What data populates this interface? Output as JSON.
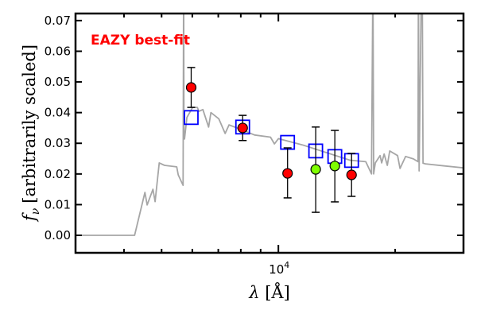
{
  "chart_data": {
    "type": "scatter",
    "title": "",
    "xlabel": "λ [Å]",
    "xlabel_symbol": "λ",
    "xlabel_unit": "[Å]",
    "ylabel": "f_ν [arbitrarily scaled]",
    "ylabel_symbol": "f",
    "ylabel_sub": "ν",
    "ylabel_text": "[arbitrarily scaled]",
    "xscale": "log",
    "xlim": [
      3000,
      30000
    ],
    "ylim": [
      -0.0057,
      0.0723
    ],
    "x_major_ticks": [
      {
        "value": 10000,
        "label_base": "10",
        "label_exp": "4"
      }
    ],
    "x_minor_ticks": [
      4000,
      5000,
      6000,
      7000,
      8000,
      9000,
      20000
    ],
    "y_ticks": [
      {
        "value": 0.0,
        "label": "0.00"
      },
      {
        "value": 0.01,
        "label": "0.01"
      },
      {
        "value": 0.02,
        "label": "0.02"
      },
      {
        "value": 0.03,
        "label": "0.03"
      },
      {
        "value": 0.04,
        "label": "0.04"
      },
      {
        "value": 0.05,
        "label": "0.05"
      },
      {
        "value": 0.06,
        "label": "0.06"
      },
      {
        "value": 0.07,
        "label": "0.07"
      }
    ],
    "annotation": {
      "text": "EAZY best-fit",
      "color": "#ff0000",
      "position": "top-left"
    },
    "series": [
      {
        "name": "template",
        "type": "line",
        "color": "#a6a6a6",
        "points": [
          [
            3000,
            0.0
          ],
          [
            4260,
            0.0
          ],
          [
            4530,
            0.014
          ],
          [
            4590,
            0.0099
          ],
          [
            4750,
            0.015
          ],
          [
            4810,
            0.011
          ],
          [
            4930,
            0.0236
          ],
          [
            5090,
            0.0228
          ],
          [
            5470,
            0.0223
          ],
          [
            5520,
            0.0197
          ],
          [
            5680,
            0.0163
          ],
          [
            5700,
            0.085
          ],
          [
            5710,
            0.0314
          ],
          [
            5730,
            0.0314
          ],
          [
            5810,
            0.0384
          ],
          [
            6010,
            0.0417
          ],
          [
            6180,
            0.0417
          ],
          [
            6240,
            0.0404
          ],
          [
            6390,
            0.041
          ],
          [
            6610,
            0.0353
          ],
          [
            6700,
            0.04
          ],
          [
            7020,
            0.038
          ],
          [
            7290,
            0.0332
          ],
          [
            7460,
            0.036
          ],
          [
            7900,
            0.0348
          ],
          [
            8680,
            0.0327
          ],
          [
            9540,
            0.032
          ],
          [
            9770,
            0.0298
          ],
          [
            10000,
            0.0315
          ],
          [
            11520,
            0.0295
          ],
          [
            13270,
            0.027
          ],
          [
            15290,
            0.0245
          ],
          [
            16800,
            0.024
          ],
          [
            17380,
            0.02
          ],
          [
            17530,
            0.085
          ],
          [
            17600,
            0.02
          ],
          [
            17780,
            0.0236
          ],
          [
            18290,
            0.026
          ],
          [
            18460,
            0.0236
          ],
          [
            18730,
            0.0265
          ],
          [
            19090,
            0.0228
          ],
          [
            19360,
            0.0275
          ],
          [
            20290,
            0.026
          ],
          [
            20590,
            0.0218
          ],
          [
            21280,
            0.0257
          ],
          [
            22290,
            0.0249
          ],
          [
            22900,
            0.024
          ],
          [
            22960,
            0.085
          ],
          [
            23060,
            0.021
          ],
          [
            23380,
            0.085
          ],
          [
            23480,
            0.085
          ],
          [
            23600,
            0.0235
          ],
          [
            23940,
            0.0233
          ],
          [
            26930,
            0.0226
          ],
          [
            30000,
            0.022
          ]
        ]
      },
      {
        "name": "observed",
        "type": "errorbar",
        "points": [
          {
            "x": 5960,
            "y": 0.0482,
            "ylo": 0.0417,
            "yhi": 0.0547,
            "color": "#ff0000"
          },
          {
            "x": 8090,
            "y": 0.035,
            "ylo": 0.0309,
            "yhi": 0.0391,
            "color": "#ff0000"
          },
          {
            "x": 10560,
            "y": 0.0202,
            "ylo": 0.0122,
            "yhi": 0.0285,
            "color": "#ff0000"
          },
          {
            "x": 12480,
            "y": 0.0215,
            "ylo": 0.0075,
            "yhi": 0.0353,
            "color": "#7fff00"
          },
          {
            "x": 13980,
            "y": 0.0226,
            "ylo": 0.0109,
            "yhi": 0.0342,
            "color": "#7fff00"
          },
          {
            "x": 15440,
            "y": 0.0197,
            "ylo": 0.0127,
            "yhi": 0.0267,
            "color": "#ff0000"
          }
        ]
      },
      {
        "name": "model-photometry",
        "type": "square-marker",
        "color": "#0000ff",
        "points": [
          [
            5960,
            0.0384
          ],
          [
            8090,
            0.0353
          ],
          [
            10560,
            0.0303
          ],
          [
            12480,
            0.0275
          ],
          [
            13980,
            0.0257
          ],
          [
            15440,
            0.0244
          ]
        ]
      }
    ]
  }
}
